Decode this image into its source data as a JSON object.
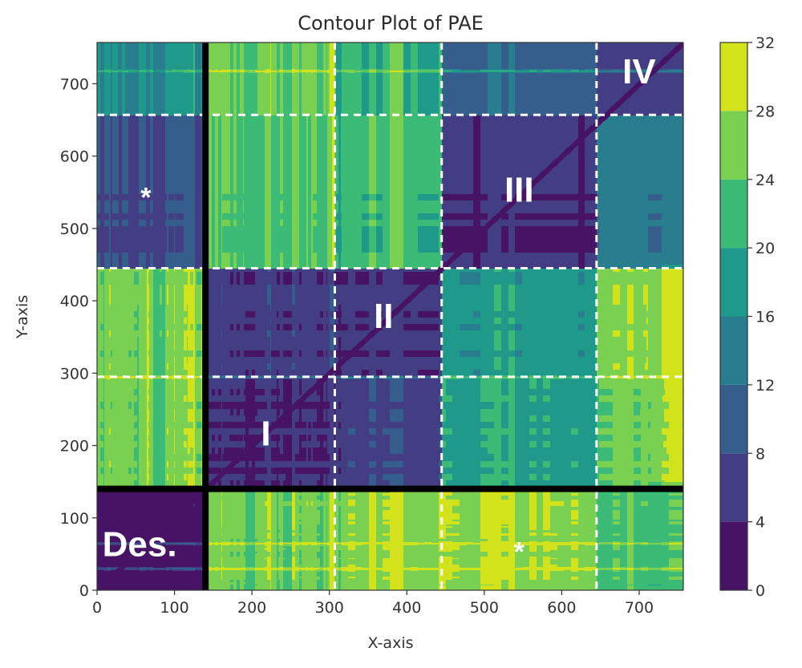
{
  "chart_data": {
    "type": "heatmap",
    "subtype": "filled-contour",
    "title": "Contour Plot of PAE",
    "xlabel": "X-axis",
    "ylabel": "Y-axis",
    "xlim": [
      0,
      757
    ],
    "ylim": [
      0,
      757
    ],
    "xticks": [
      0,
      100,
      200,
      300,
      400,
      500,
      600,
      700
    ],
    "yticks": [
      0,
      100,
      200,
      300,
      400,
      500,
      600,
      700
    ],
    "colorbar": {
      "levels": [
        0,
        4,
        8,
        12,
        16,
        20,
        24,
        28,
        32
      ],
      "ticks": [
        0,
        4,
        8,
        12,
        16,
        20,
        24,
        28,
        32
      ],
      "colors": [
        "#471365",
        "#433d84",
        "#355e8d",
        "#287d8e",
        "#1f9a8a",
        "#3bbb75",
        "#7ad151",
        "#d2e21b"
      ],
      "placement": "right"
    },
    "boundaries": {
      "solid": {
        "x": [
          140
        ],
        "y": [
          140
        ],
        "color": "#000000"
      },
      "dashed": {
        "x": [
          307,
          445,
          645
        ],
        "y": [
          295,
          445,
          657
        ],
        "color": "#ffffff"
      }
    },
    "segments": [
      0,
      140,
      307,
      445,
      645,
      757
    ],
    "segment_rows_y": [
      0,
      140,
      295,
      445,
      657,
      757
    ],
    "block_mean_pae": [
      [
        1.5,
        25,
        26,
        26,
        21
      ],
      [
        25,
        3,
        5,
        17,
        23
      ],
      [
        25,
        4,
        3,
        16,
        24
      ],
      [
        6,
        22,
        20,
        2,
        11
      ],
      [
        15,
        23,
        19,
        8,
        4
      ]
    ],
    "bright_stripes_y": [
      30,
      65,
      295,
      718
    ],
    "bright_stripes_x": [
      65,
      305
    ],
    "annotations": [
      {
        "text": "Des.",
        "x": 55,
        "y": 65
      },
      {
        "text": "I",
        "x": 218,
        "y": 218
      },
      {
        "text": "II",
        "x": 370,
        "y": 380
      },
      {
        "text": "III",
        "x": 545,
        "y": 555
      },
      {
        "text": "IV",
        "x": 700,
        "y": 718
      },
      {
        "text": "*",
        "x": 63,
        "y": 555
      },
      {
        "text": "*",
        "x": 545,
        "y": 65
      }
    ]
  }
}
